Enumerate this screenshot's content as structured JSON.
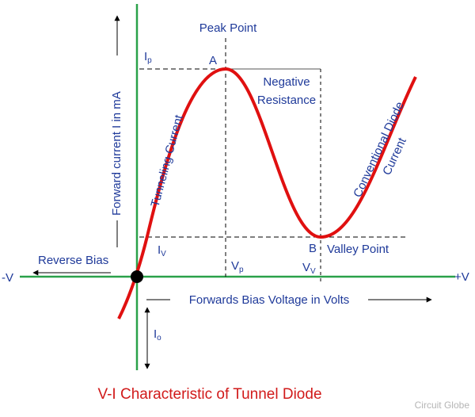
{
  "labels": {
    "peak_point": "Peak Point",
    "ip": {
      "main": "I",
      "sub": "p"
    },
    "a": "A",
    "negative": "Negative",
    "resistance": "Resistance",
    "tunneling_current": "Tunneling Current",
    "conventional_diode": "Conventional Diode",
    "current": "Current",
    "y_axis": "Forward current I in mA",
    "reverse_bias": "Reverse Bias",
    "minus_v": "-V",
    "plus_v": "+V",
    "iv": {
      "main": "I",
      "sub": "V"
    },
    "b": "B",
    "valley_point": "Valley Point",
    "vp": {
      "main": "V",
      "sub": "p"
    },
    "vv": {
      "main": "V",
      "sub": "V"
    },
    "x_axis": "Forwards Bias Voltage in Volts",
    "io": {
      "main": "I",
      "sub": "o"
    }
  },
  "title": "V-I Characteristic of Tunnel Diode",
  "watermark": "Circuit Globe"
}
